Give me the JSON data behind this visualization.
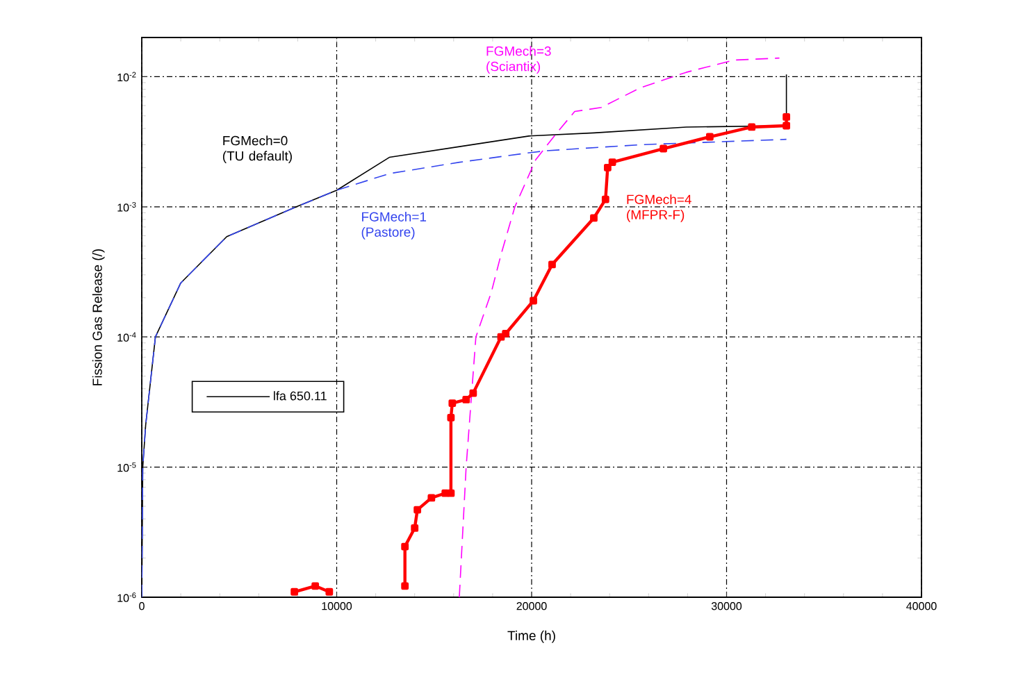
{
  "chart_data": {
    "type": "line",
    "xlabel": "Time (h)",
    "ylabel": "Fission Gas Release (/)",
    "xlim": [
      0,
      40000
    ],
    "xticks": [
      0,
      10000,
      20000,
      30000,
      40000
    ],
    "ylim": [
      1e-06,
      0.02
    ],
    "yticks": [
      {
        "value": 1e-06,
        "label": "10$^{-6}$"
      },
      {
        "value": 1e-05,
        "label": "10$^{-5}$"
      },
      {
        "value": 0.0001,
        "label": "10$^{-4}$"
      },
      {
        "value": 0.001,
        "label": "10$^{-3}$"
      },
      {
        "value": 0.01,
        "label": "10$^{-2}$"
      }
    ],
    "log": "y",
    "grid": true,
    "legend": "left",
    "series": [
      {
        "name": "lfa 650.11",
        "color": "#000000",
        "line_style": "solid",
        "marker": "none",
        "x": [
          0,
          50,
          200,
          700,
          2000,
          4360,
          7930,
          10000,
          12700,
          16300,
          19860,
          23190,
          27930,
          33070,
          33070
        ],
        "values": [
          1e-06,
          1e-05,
          2.1e-05,
          0.0001,
          0.00026,
          0.00059,
          0.001,
          0.00134,
          0.0024,
          0.0029,
          0.0035,
          0.0037,
          0.0041,
          0.0042,
          0.0104
        ]
      },
      {
        "color": "#3344ee",
        "line_style": "dashed",
        "marker": "none",
        "x": [
          0,
          50,
          200,
          700,
          2000,
          4360,
          7930,
          10000,
          12700,
          16300,
          19860,
          20790,
          25570,
          33070
        ],
        "values": [
          1e-06,
          1e-05,
          2.1e-05,
          0.0001,
          0.00026,
          0.00059,
          0.001,
          0.00134,
          0.0018,
          0.0022,
          0.0026,
          0.0027,
          0.003,
          0.0033
        ]
      },
      {
        "color": "#ff00ff",
        "line_style": "dashed",
        "marker": "none",
        "x": [
          16290,
          16640,
          17140,
          17930,
          18430,
          19140,
          20210,
          21290,
          22210,
          23570,
          25570,
          27930,
          30360,
          32710
        ],
        "values": [
          1e-06,
          1e-05,
          0.0001,
          0.00022,
          0.00043,
          0.001,
          0.0023,
          0.0037,
          0.0054,
          0.0058,
          0.0082,
          0.0108,
          0.0134,
          0.0139
        ]
      },
      {
        "color": "#ff0000",
        "line_style": "solid",
        "marker": "square",
        "x": [
          7830,
          8900,
          9620,
          11500,
          13500,
          13500,
          14000,
          14140,
          14860,
          15570,
          15860,
          15860,
          15930,
          16640,
          17000,
          18430,
          18670,
          20090,
          21050,
          23190,
          23790,
          23900,
          24140,
          26760,
          29140,
          31290,
          33070,
          33070
        ],
        "values": [
          1.1e-06,
          1.22e-06,
          1.1e-06,
          null,
          1.22e-06,
          2.45e-06,
          3.4e-06,
          4.7e-06,
          5.8e-06,
          6.3e-06,
          6.3e-06,
          2.4e-05,
          3.1e-05,
          3.3e-05,
          3.7e-05,
          0.0001,
          0.000106,
          0.00019,
          0.00036,
          0.00082,
          0.00114,
          0.002,
          0.0022,
          0.0028,
          0.00345,
          0.0041,
          0.0042,
          0.0049
        ]
      }
    ],
    "annotations": [
      "FGMech=0 (TU default)",
      "FGMech=1 (Pastore)",
      "FGMech=3 (Sciantix)",
      "FGMech=4 (MFPR-F)"
    ]
  }
}
